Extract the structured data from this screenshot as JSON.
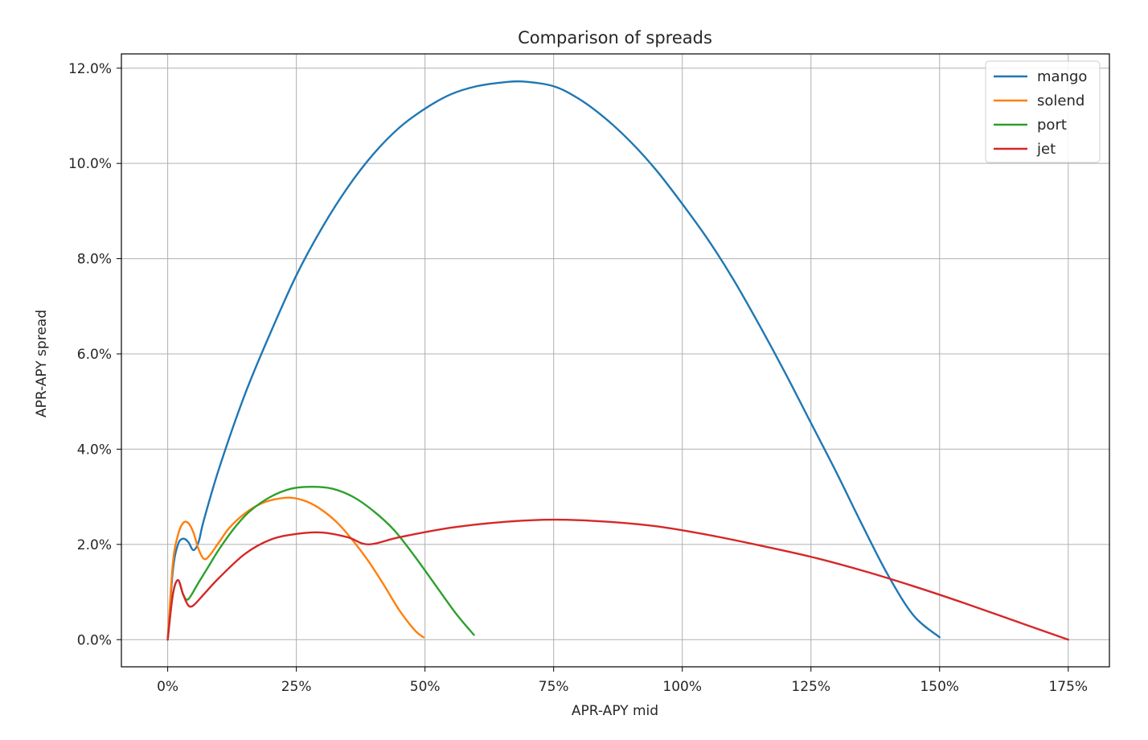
{
  "chart_data": {
    "type": "line",
    "title": "Comparison of spreads",
    "xlabel": "APR-APY mid",
    "ylabel": "APR-APY spread",
    "xlim": [
      -9,
      183
    ],
    "ylim": [
      -0.57,
      12.3
    ],
    "x_ticks": [
      0,
      25,
      50,
      75,
      100,
      125,
      150,
      175
    ],
    "x_tick_labels": [
      "0%",
      "25%",
      "50%",
      "75%",
      "100%",
      "125%",
      "150%",
      "175%"
    ],
    "y_ticks": [
      0,
      2,
      4,
      6,
      8,
      10,
      12
    ],
    "y_tick_labels": [
      "0.0%",
      "2.0%",
      "4.0%",
      "6.0%",
      "8.0%",
      "10.0%",
      "12.0%"
    ],
    "grid": true,
    "legend_position": "top-right",
    "series": [
      {
        "name": "mango",
        "color": "#1f77b4",
        "x": [
          0,
          1,
          2,
          3,
          4,
          5,
          6,
          7,
          10,
          15,
          20,
          25,
          30,
          35,
          40,
          45,
          50,
          55,
          60,
          65,
          69,
          75,
          80,
          85,
          90,
          95,
          100,
          105,
          110,
          115,
          120,
          125,
          130,
          135,
          140,
          145,
          150
        ],
        "y": [
          0,
          1.45,
          2.0,
          2.12,
          2.05,
          1.88,
          2.05,
          2.5,
          3.6,
          5.15,
          6.45,
          7.65,
          8.65,
          9.5,
          10.2,
          10.75,
          11.15,
          11.45,
          11.62,
          11.7,
          11.72,
          11.62,
          11.35,
          10.95,
          10.45,
          9.85,
          9.15,
          8.4,
          7.55,
          6.6,
          5.6,
          4.55,
          3.5,
          2.4,
          1.35,
          0.5,
          0.05
        ]
      },
      {
        "name": "solend",
        "color": "#ff7f0e",
        "x": [
          0,
          1,
          2,
          3,
          4,
          5,
          6,
          7,
          8,
          10,
          12,
          15,
          18,
          21,
          24,
          27,
          30,
          33,
          36,
          39,
          42,
          45,
          48,
          49.7
        ],
        "y": [
          0,
          1.6,
          2.2,
          2.45,
          2.45,
          2.25,
          1.9,
          1.7,
          1.75,
          2.05,
          2.35,
          2.65,
          2.85,
          2.95,
          2.98,
          2.9,
          2.72,
          2.45,
          2.08,
          1.65,
          1.15,
          0.62,
          0.2,
          0.05
        ]
      },
      {
        "name": "port",
        "color": "#2ca02c",
        "x": [
          0,
          1,
          2,
          3,
          4,
          6,
          8,
          10,
          13,
          16,
          20,
          24,
          28,
          32,
          36,
          40,
          44,
          48,
          52,
          56,
          59.5
        ],
        "y": [
          0,
          0.95,
          1.25,
          0.95,
          0.85,
          1.2,
          1.55,
          1.9,
          2.35,
          2.7,
          3.0,
          3.17,
          3.21,
          3.17,
          3.0,
          2.7,
          2.3,
          1.75,
          1.15,
          0.55,
          0.1
        ]
      },
      {
        "name": "jet",
        "color": "#d62728",
        "x": [
          0,
          1,
          2,
          3,
          4,
          5,
          7,
          10,
          15,
          20,
          25,
          30,
          35,
          39,
          45,
          55,
          65,
          75,
          85,
          95,
          105,
          115,
          125,
          135,
          145,
          155,
          165,
          175
        ],
        "y": [
          0,
          0.95,
          1.25,
          0.95,
          0.72,
          0.72,
          0.95,
          1.3,
          1.8,
          2.1,
          2.22,
          2.25,
          2.15,
          2.0,
          2.15,
          2.35,
          2.47,
          2.52,
          2.48,
          2.38,
          2.2,
          1.98,
          1.74,
          1.45,
          1.12,
          0.76,
          0.38,
          0.0
        ]
      }
    ]
  }
}
